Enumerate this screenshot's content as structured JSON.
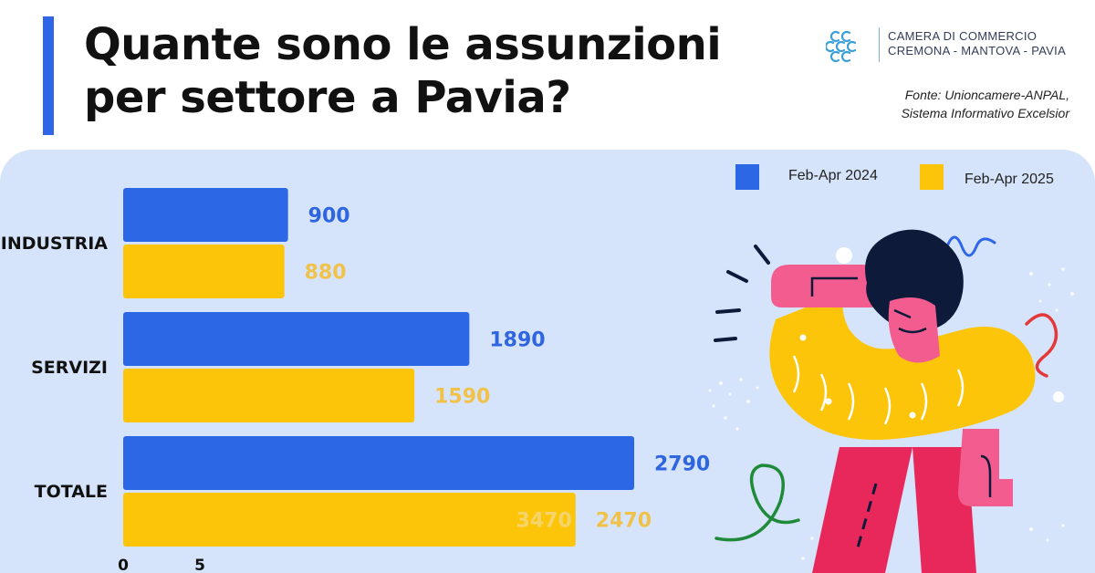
{
  "header": {
    "title_line1": "Quante sono le assunzioni",
    "title_line2": "per settore a Pavia?"
  },
  "logo": {
    "line1": "CAMERA DI COMMERCIO",
    "line2": "CREMONA - MANTOVA - PAVIA"
  },
  "source": {
    "line1": "Fonte: Unioncamere-ANPAL,",
    "line2": "Sistema Informativo Excelsior"
  },
  "legend": {
    "series1": "Feb-Apr 2024",
    "series2": "Feb-Apr 2025"
  },
  "colors": {
    "series1": "#2c68e6",
    "series2": "#fcc50a",
    "series1_label": "#2f66e0",
    "series2_label": "#f0c24a",
    "panel": "#d6e4fb",
    "accent": "#2f66e8"
  },
  "chart_data": {
    "type": "bar",
    "orientation": "horizontal",
    "categories": [
      "INDUSTRIA",
      "SERVIZI",
      "TOTALE"
    ],
    "series": [
      {
        "name": "Feb-Apr 2024",
        "values": [
          900,
          1890,
          2790
        ]
      },
      {
        "name": "Feb-Apr 2025",
        "values": [
          880,
          1590,
          2470
        ]
      }
    ],
    "data_labels": [
      [
        "900",
        "1890",
        "2790"
      ],
      [
        "880",
        "1590",
        "2470"
      ]
    ],
    "extra_label": "3470",
    "x_ticks": [
      "0",
      "5"
    ],
    "legend_position": "top-right"
  },
  "illustration": {
    "name": "thinking-person-illustration"
  }
}
